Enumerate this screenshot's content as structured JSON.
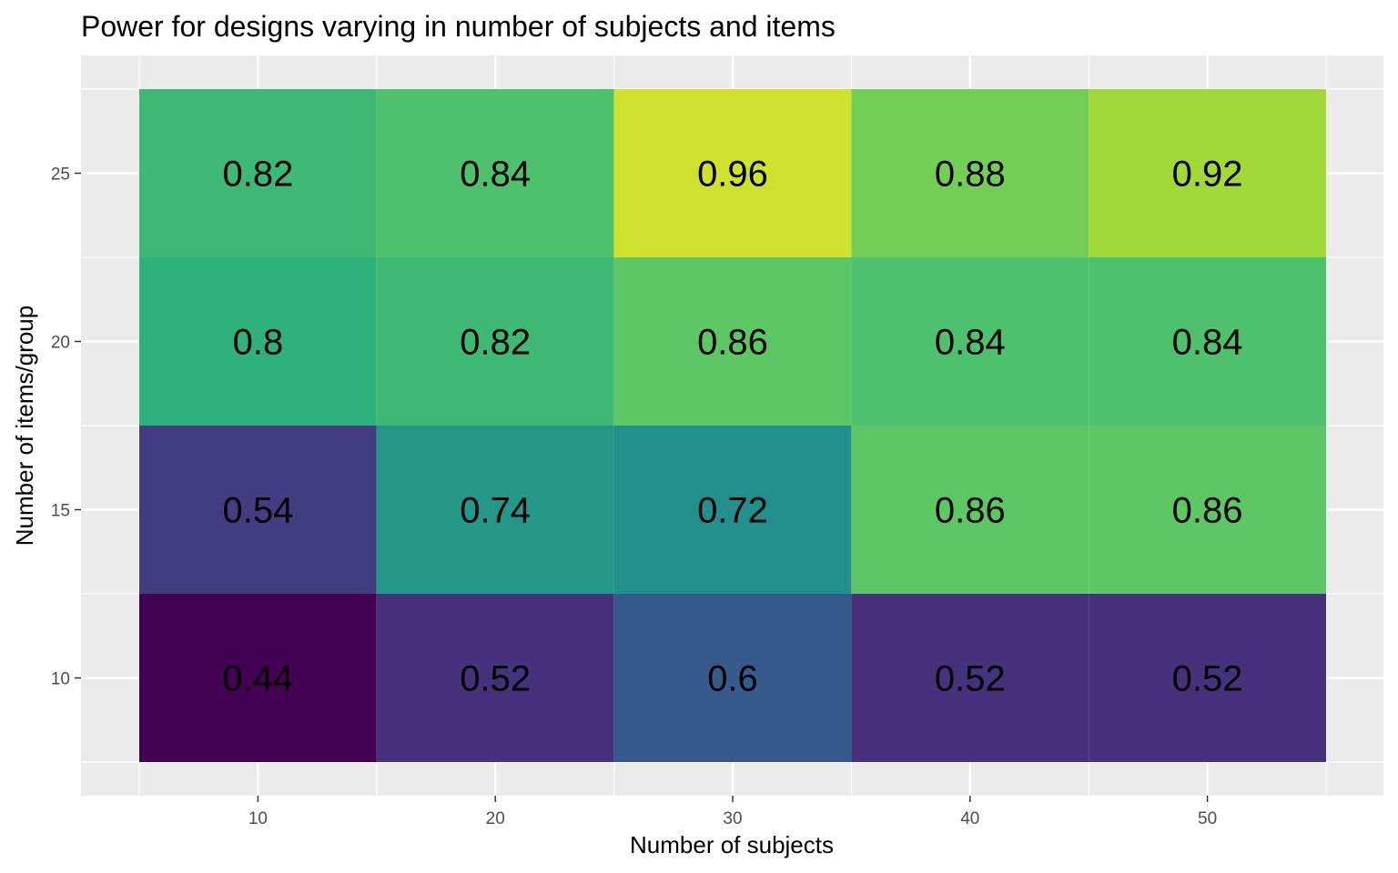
{
  "chart_data": {
    "type": "heatmap",
    "title": "Power for designs varying in number of subjects and items",
    "xlabel": "Number of subjects",
    "ylabel": "Number of items/group",
    "x": [
      10,
      20,
      30,
      40,
      50
    ],
    "y": [
      10,
      15,
      20,
      25
    ],
    "xlim": [
      5,
      55
    ],
    "ylim": [
      7.5,
      27.5
    ],
    "x_ticks": [
      "10",
      "20",
      "30",
      "40",
      "50"
    ],
    "y_ticks": [
      "10",
      "15",
      "20",
      "25"
    ],
    "values": [
      [
        0.44,
        0.52,
        0.6,
        0.52,
        0.52
      ],
      [
        0.54,
        0.74,
        0.72,
        0.86,
        0.86
      ],
      [
        0.8,
        0.82,
        0.86,
        0.84,
        0.84
      ],
      [
        0.82,
        0.84,
        0.96,
        0.88,
        0.92
      ]
    ],
    "value_labels": [
      [
        "0.44",
        "0.52",
        "0.6",
        "0.52",
        "0.52"
      ],
      [
        "0.54",
        "0.74",
        "0.72",
        "0.86",
        "0.86"
      ],
      [
        "0.8",
        "0.82",
        "0.86",
        "0.84",
        "0.84"
      ],
      [
        "0.82",
        "0.84",
        "0.96",
        "0.88",
        "0.92"
      ]
    ],
    "colorscale": "viridis",
    "color_range": [
      0.44,
      0.96
    ],
    "grid": true,
    "legend": "none",
    "colors": {
      "panel_background": "#ebebeb",
      "grid_line": "#ffffff",
      "tick_text": "#4d4d4d"
    }
  }
}
